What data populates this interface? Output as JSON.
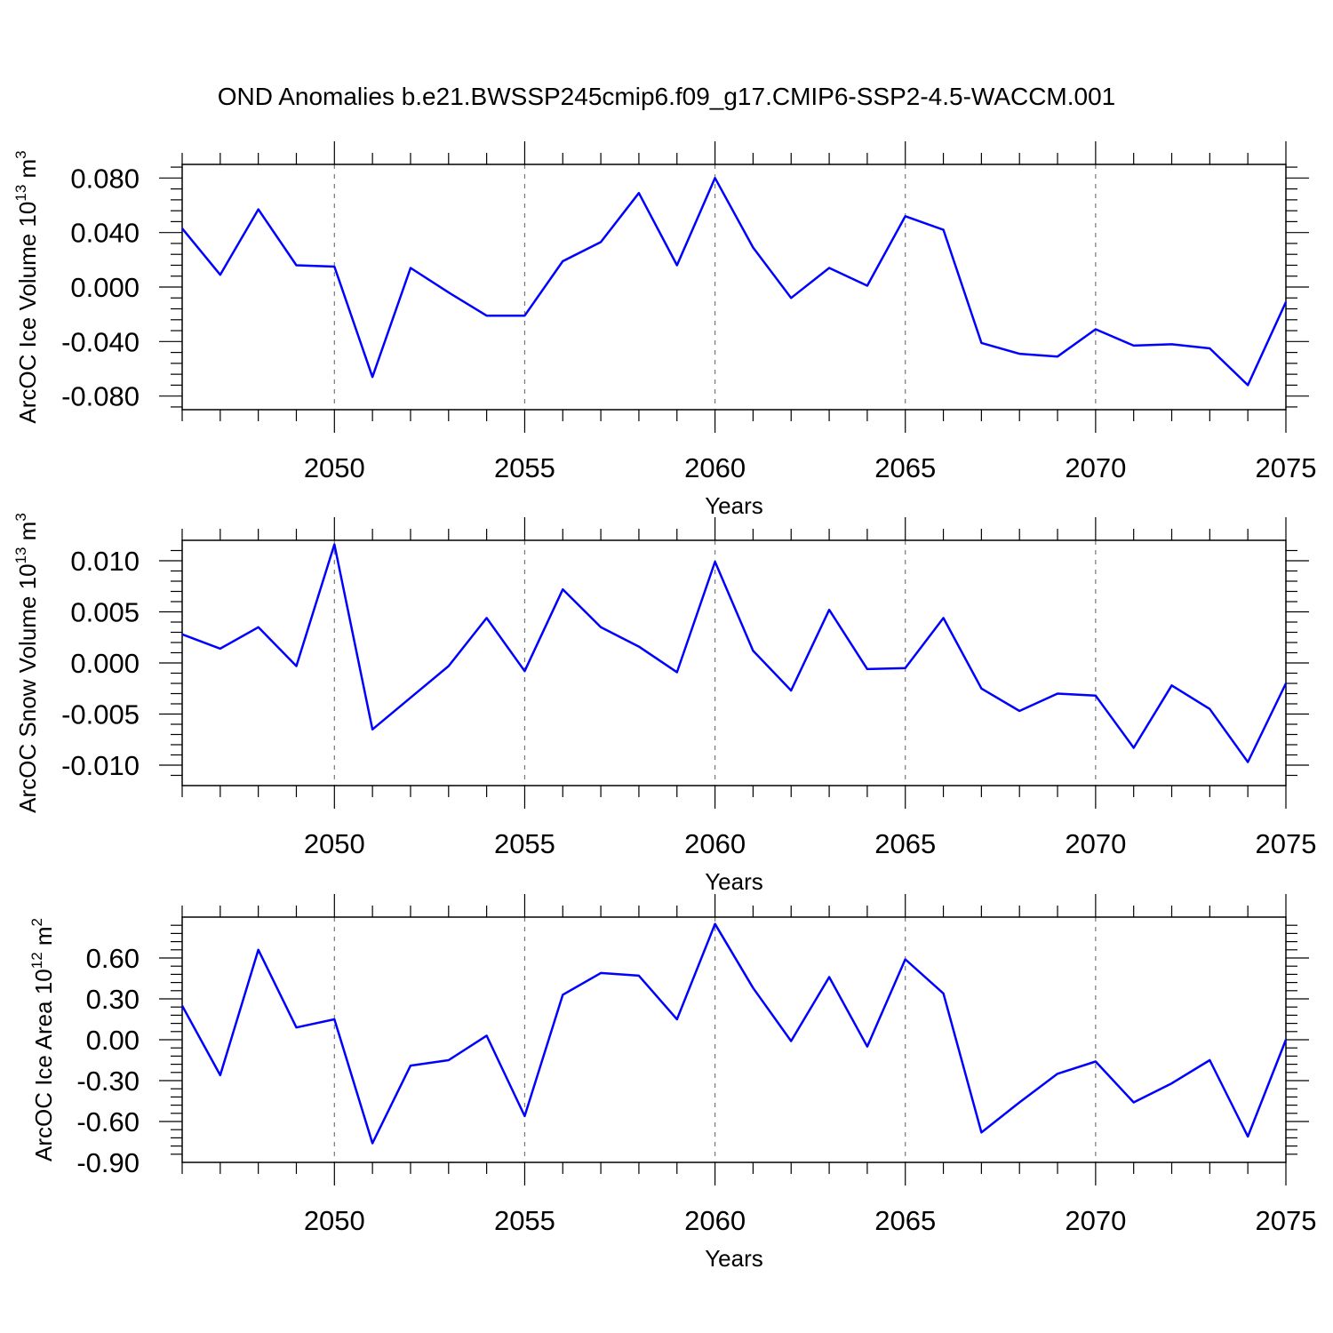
{
  "title": "OND Anomalies b.e21.BWSSP245cmip6.f09_g17.CMIP6-SSP2-4.5-WACCM.001",
  "line_color": "#0000ff",
  "chart_data": [
    {
      "type": "line",
      "xlabel": "Years",
      "ylabel_parts": {
        "base": "ArcOC Ice Volume 10",
        "exp": "13",
        "mid": " m",
        "unit_exp": "3"
      },
      "xlim": [
        2046,
        2075
      ],
      "ylim": [
        -0.09,
        0.09
      ],
      "xticks": [
        2050,
        2055,
        2060,
        2065,
        2070,
        2075
      ],
      "yticks": [
        -0.08,
        -0.04,
        0.0,
        0.04,
        0.08
      ],
      "ytick_labels": [
        "-0.080",
        "-0.040",
        "0.000",
        "0.040",
        "0.080"
      ],
      "grid_x": [
        2050,
        2055,
        2060,
        2065,
        2070
      ],
      "x": [
        2046,
        2047,
        2048,
        2049,
        2050,
        2051,
        2052,
        2053,
        2054,
        2055,
        2056,
        2057,
        2058,
        2059,
        2060,
        2061,
        2062,
        2063,
        2064,
        2065,
        2066,
        2067,
        2068,
        2069,
        2070,
        2071,
        2072,
        2073,
        2074,
        2075
      ],
      "values": [
        0.043,
        0.009,
        0.057,
        0.016,
        0.015,
        -0.066,
        0.014,
        -0.004,
        -0.021,
        -0.021,
        0.019,
        0.033,
        0.069,
        0.016,
        0.08,
        0.029,
        -0.008,
        0.014,
        0.001,
        0.052,
        0.042,
        -0.041,
        -0.049,
        -0.051,
        -0.031,
        -0.043,
        -0.042,
        -0.045,
        -0.072,
        -0.011
      ]
    },
    {
      "type": "line",
      "xlabel": "Years",
      "ylabel_parts": {
        "base": "ArcOC Snow Volume 10",
        "exp": "13",
        "mid": " m",
        "unit_exp": "3"
      },
      "xlim": [
        2046,
        2075
      ],
      "ylim": [
        -0.012,
        0.012
      ],
      "xticks": [
        2050,
        2055,
        2060,
        2065,
        2070,
        2075
      ],
      "yticks": [
        -0.01,
        -0.005,
        0.0,
        0.005,
        0.01
      ],
      "ytick_labels": [
        "-0.010",
        "-0.005",
        "0.000",
        "0.005",
        "0.010"
      ],
      "grid_x": [
        2050,
        2055,
        2060,
        2065,
        2070
      ],
      "x": [
        2046,
        2047,
        2048,
        2049,
        2050,
        2051,
        2052,
        2053,
        2054,
        2055,
        2056,
        2057,
        2058,
        2059,
        2060,
        2061,
        2062,
        2063,
        2064,
        2065,
        2066,
        2067,
        2068,
        2069,
        2070,
        2071,
        2072,
        2073,
        2074,
        2075
      ],
      "values": [
        0.0028,
        0.0014,
        0.0035,
        -0.0003,
        0.0116,
        -0.0065,
        -0.0034,
        -0.0003,
        0.0044,
        -0.0008,
        0.0072,
        0.0035,
        0.0016,
        -0.0009,
        0.0099,
        0.0012,
        -0.0027,
        0.0052,
        -0.0006,
        -0.0005,
        0.0044,
        -0.0025,
        -0.0047,
        -0.003,
        -0.0032,
        -0.0083,
        -0.0022,
        -0.0045,
        -0.0097,
        -0.002
      ]
    },
    {
      "type": "line",
      "xlabel": "Years",
      "ylabel_parts": {
        "base": "ArcOC Ice Area 10",
        "exp": "12",
        "mid": " m",
        "unit_exp": "2"
      },
      "xlim": [
        2046,
        2075
      ],
      "ylim": [
        -0.9,
        0.9
      ],
      "xticks": [
        2050,
        2055,
        2060,
        2065,
        2070,
        2075
      ],
      "yticks": [
        -0.9,
        -0.6,
        -0.3,
        0.0,
        0.3,
        0.6
      ],
      "ytick_labels": [
        "-0.90",
        "-0.60",
        "-0.30",
        "0.00",
        "0.30",
        "0.60"
      ],
      "grid_x": [
        2050,
        2055,
        2060,
        2065,
        2070
      ],
      "x": [
        2046,
        2047,
        2048,
        2049,
        2050,
        2051,
        2052,
        2053,
        2054,
        2055,
        2056,
        2057,
        2058,
        2059,
        2060,
        2061,
        2062,
        2063,
        2064,
        2065,
        2066,
        2067,
        2068,
        2069,
        2070,
        2071,
        2072,
        2073,
        2074,
        2075
      ],
      "values": [
        0.25,
        -0.26,
        0.66,
        0.09,
        0.15,
        -0.76,
        -0.19,
        -0.15,
        0.03,
        -0.56,
        0.33,
        0.49,
        0.47,
        0.15,
        0.85,
        0.38,
        -0.01,
        0.46,
        -0.05,
        0.59,
        0.34,
        -0.68,
        -0.46,
        -0.25,
        -0.16,
        -0.46,
        -0.32,
        -0.15,
        -0.71,
        0.0
      ]
    }
  ]
}
